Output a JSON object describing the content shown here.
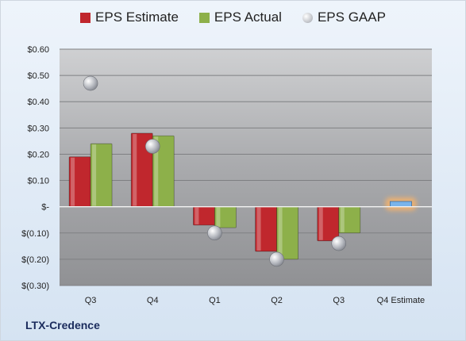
{
  "legend": [
    {
      "label": "EPS Estimate",
      "color": "#c0272d"
    },
    {
      "label": "EPS Actual",
      "color": "#8db04a"
    },
    {
      "label": "EPS GAAP",
      "color": "#b9bcc4"
    }
  ],
  "company": "LTX-Credence",
  "chart_data": {
    "type": "bar",
    "categories": [
      "Q3",
      "Q4",
      "Q1",
      "Q2",
      "Q3",
      "Q4 Estimate"
    ],
    "series": [
      {
        "name": "EPS Estimate",
        "type": "bar",
        "color": "#c0272d",
        "values": [
          0.19,
          0.28,
          -0.07,
          -0.17,
          -0.13,
          0.02
        ]
      },
      {
        "name": "EPS Actual",
        "type": "bar",
        "color": "#8db04a",
        "values": [
          0.24,
          0.27,
          -0.08,
          -0.2,
          -0.1,
          null
        ]
      },
      {
        "name": "EPS GAAP",
        "type": "scatter",
        "color": "#b9bcc4",
        "values": [
          0.47,
          0.23,
          -0.1,
          -0.2,
          -0.14,
          null
        ]
      }
    ],
    "highlight": {
      "category": "Q4 Estimate",
      "color": "#7ab4ea",
      "glow": "#f6b26b"
    },
    "ylim": [
      -0.3,
      0.6
    ],
    "yticks": [
      {
        "value": 0.6,
        "label": "$0.60"
      },
      {
        "value": 0.5,
        "label": "$0.50"
      },
      {
        "value": 0.4,
        "label": "$0.40"
      },
      {
        "value": 0.3,
        "label": "$0.30"
      },
      {
        "value": 0.2,
        "label": "$0.20"
      },
      {
        "value": 0.1,
        "label": "$0.10"
      },
      {
        "value": 0.0,
        "label": "$-"
      },
      {
        "value": -0.1,
        "label": "$(0.10)"
      },
      {
        "value": -0.2,
        "label": "$(0.20)"
      },
      {
        "value": -0.3,
        "label": "$(0.30)"
      }
    ],
    "grid": true,
    "legend_position": "top"
  }
}
